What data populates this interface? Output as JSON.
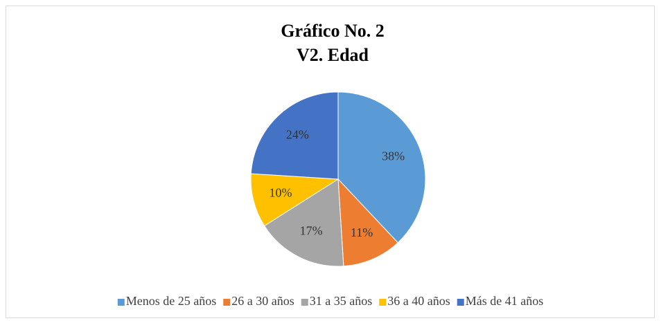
{
  "chart_data": {
    "type": "pie",
    "title": "Gráfico No. 2",
    "subtitle": "V2. Edad",
    "categories": [
      "Menos de 25 años",
      "26 a 30 años",
      "31 a 35 años",
      "36 a 40 años",
      "Más de 41 años"
    ],
    "values": [
      38,
      11,
      17,
      10,
      24
    ],
    "value_labels": [
      "38%",
      "11%",
      "17%",
      "10%",
      "24%"
    ],
    "colors": [
      "#5b9bd5",
      "#ed7d31",
      "#a5a5a5",
      "#ffc000",
      "#4472c4"
    ],
    "legend": "bottom"
  }
}
